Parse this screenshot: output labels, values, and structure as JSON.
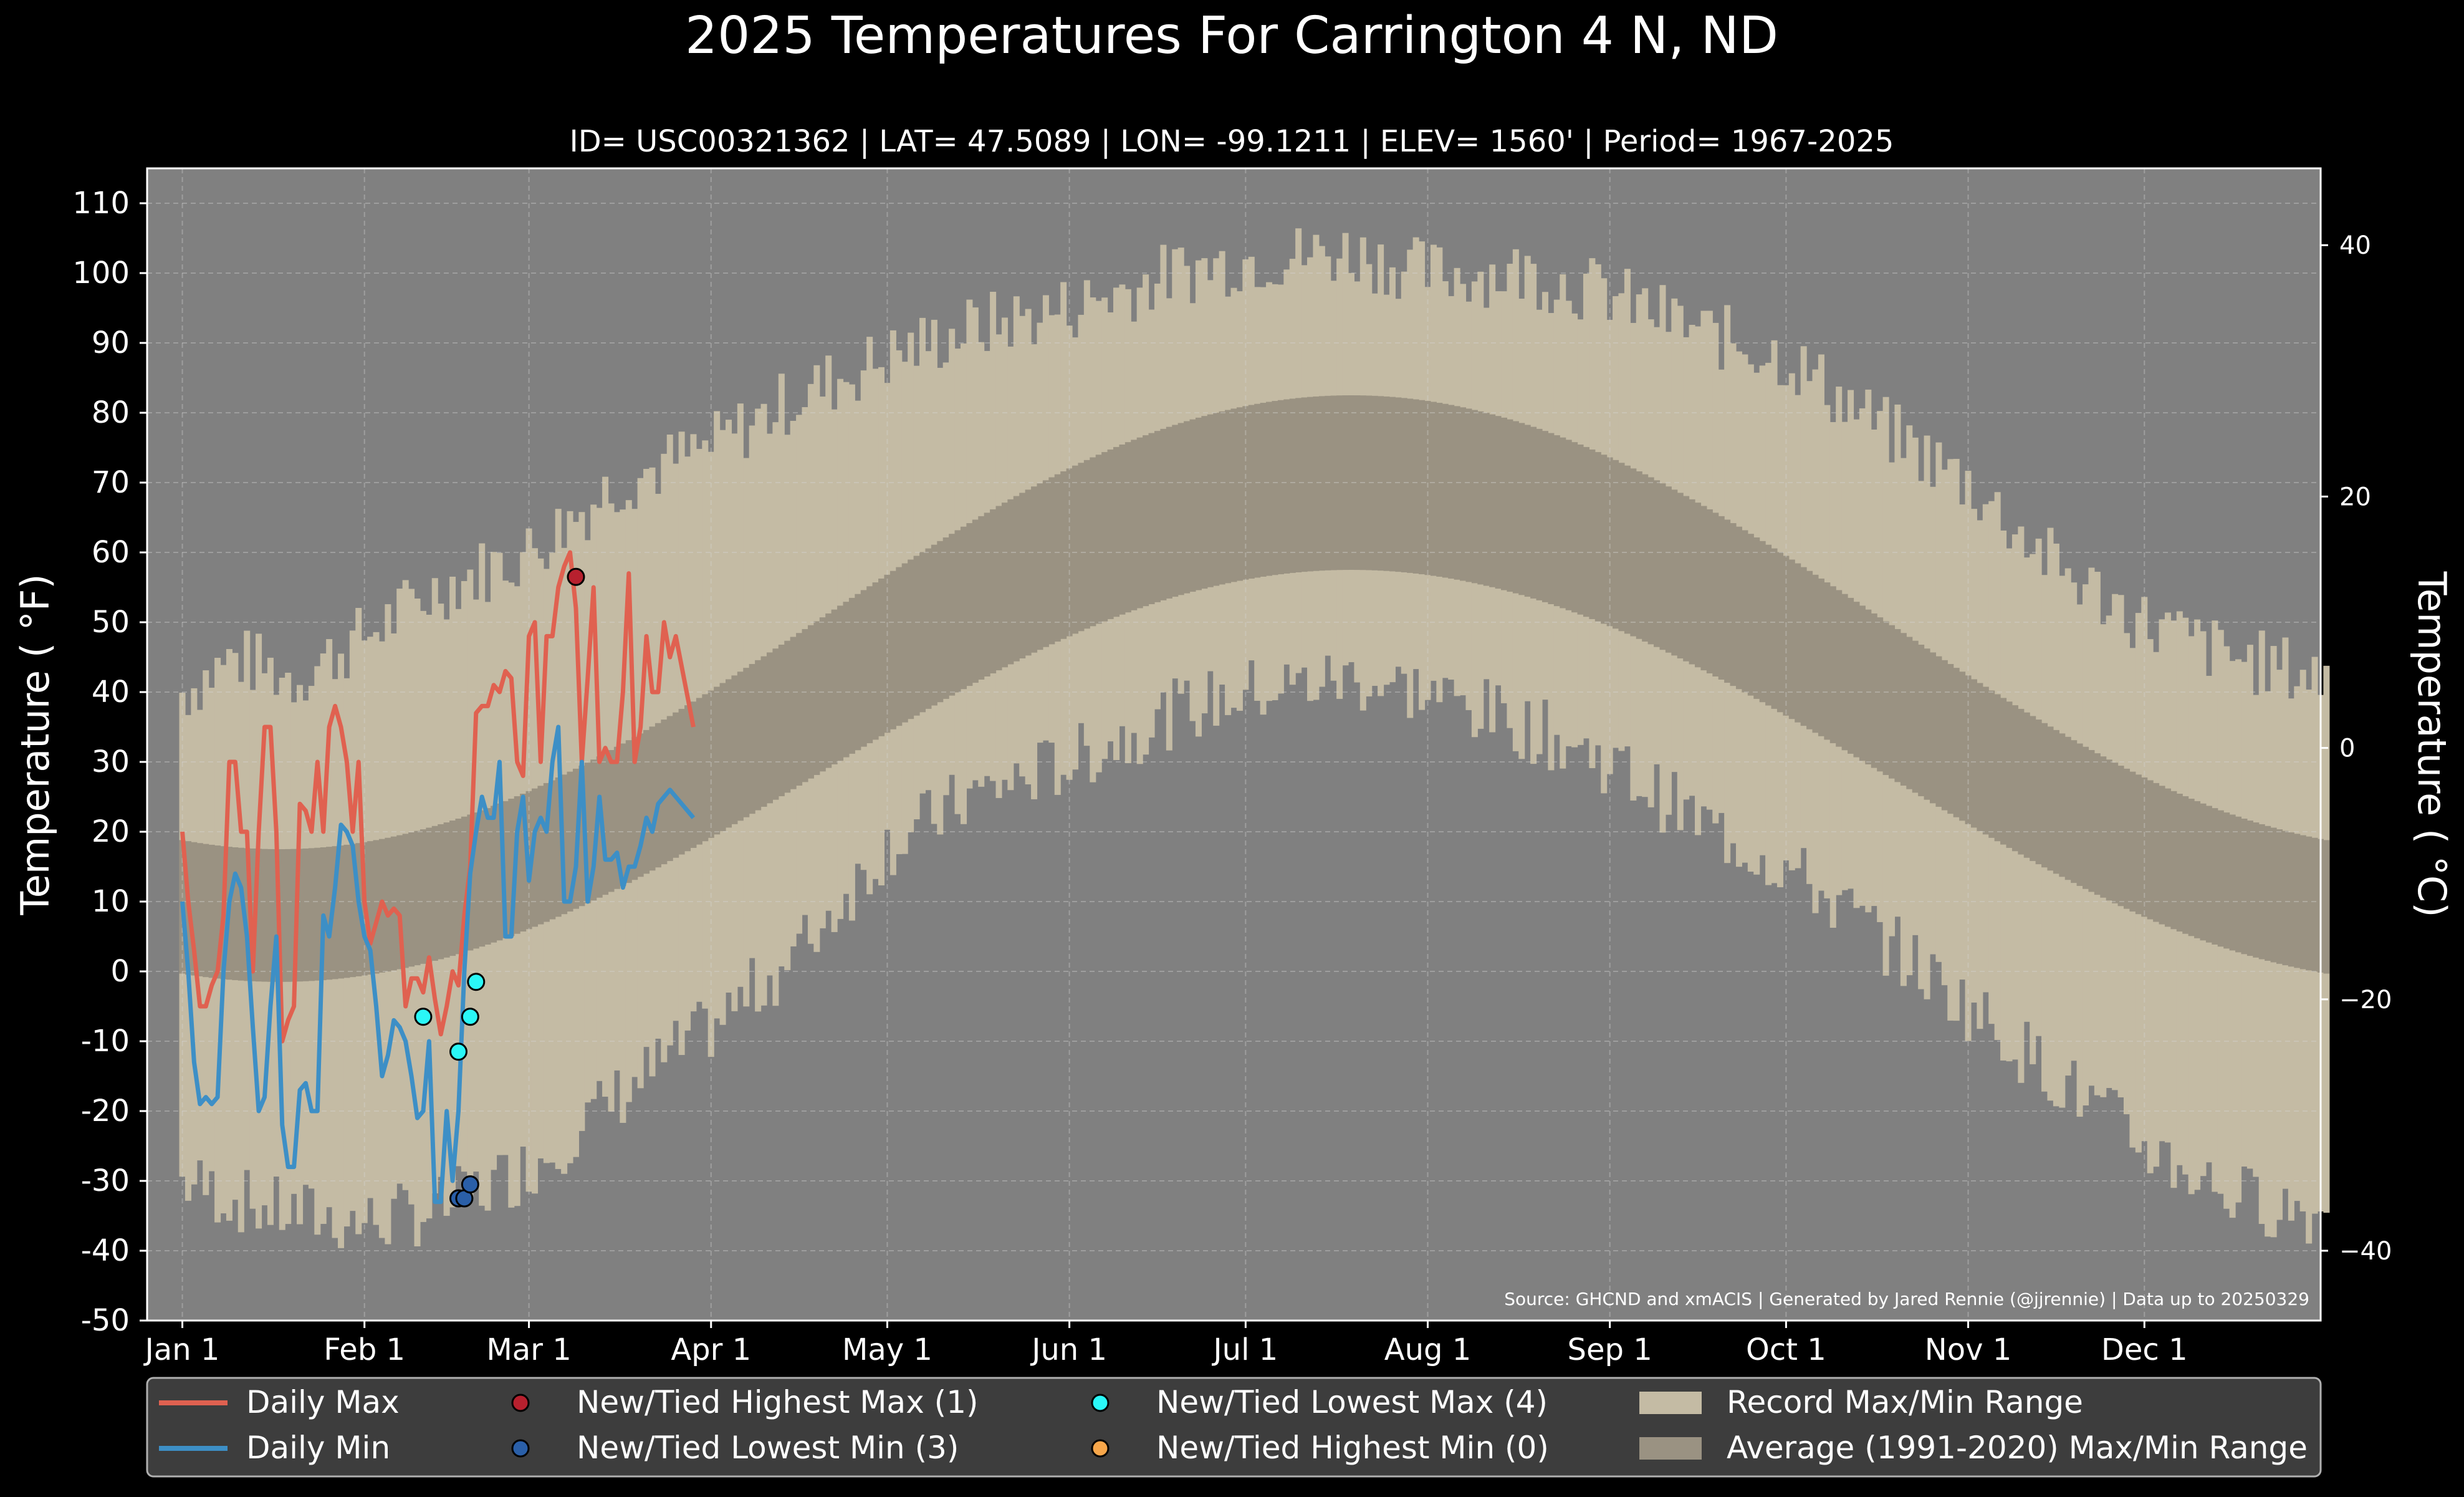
{
  "chart_data": {
    "type": "line",
    "title": "2025 Temperatures For Carrington 4 N, ND",
    "subtitle": "ID= USC00321362 | LAT= 47.5089 | LON= -99.1211 | ELEV= 1560' | Period= 1967-2025",
    "ylabel": "Temperature ( °F)",
    "ylabel_right": "Temperature ( °C)",
    "source": "Source: GHCND and xmACIS | Generated by Jared Rennie (@jjrennie) | Data up to 20250329",
    "ylim": [
      -50,
      115
    ],
    "xlim_day": [
      -5,
      365
    ],
    "grid": true,
    "y_ticks": [
      110,
      100,
      90,
      80,
      70,
      60,
      50,
      40,
      30,
      20,
      10,
      0,
      -10,
      -20,
      -30,
      -40,
      -50
    ],
    "y_ticks_c": [
      40,
      20,
      0,
      -20,
      -40
    ],
    "x_ticks": [
      {
        "label": "Jan 1",
        "day": 1
      },
      {
        "label": "Feb 1",
        "day": 32
      },
      {
        "label": "Mar 1",
        "day": 60
      },
      {
        "label": "Apr 1",
        "day": 91
      },
      {
        "label": "May 1",
        "day": 121
      },
      {
        "label": "Jun 1",
        "day": 152
      },
      {
        "label": "Jul 1",
        "day": 182
      },
      {
        "label": "Aug 1",
        "day": 213
      },
      {
        "label": "Sep 1",
        "day": 244
      },
      {
        "label": "Oct 1",
        "day": 274
      },
      {
        "label": "Nov 1",
        "day": 305
      },
      {
        "label": "Dec 1",
        "day": 335
      }
    ],
    "record_max_knots": [
      [
        1,
        40
      ],
      [
        10,
        45
      ],
      [
        20,
        42
      ],
      [
        32,
        48
      ],
      [
        45,
        55
      ],
      [
        60,
        60
      ],
      [
        75,
        70
      ],
      [
        91,
        75
      ],
      [
        105,
        82
      ],
      [
        121,
        88
      ],
      [
        135,
        92
      ],
      [
        152,
        95
      ],
      [
        170,
        100
      ],
      [
        182,
        102
      ],
      [
        200,
        103
      ],
      [
        213,
        100
      ],
      [
        230,
        100
      ],
      [
        244,
        97
      ],
      [
        258,
        92
      ],
      [
        274,
        88
      ],
      [
        290,
        78
      ],
      [
        305,
        70
      ],
      [
        320,
        58
      ],
      [
        335,
        50
      ],
      [
        350,
        45
      ],
      [
        366,
        42
      ]
    ],
    "record_min_knots": [
      [
        1,
        -30
      ],
      [
        15,
        -34
      ],
      [
        32,
        -36
      ],
      [
        45,
        -34
      ],
      [
        60,
        -28
      ],
      [
        75,
        -18
      ],
      [
        91,
        -8
      ],
      [
        105,
        2
      ],
      [
        121,
        18
      ],
      [
        135,
        25
      ],
      [
        152,
        30
      ],
      [
        170,
        37
      ],
      [
        182,
        40
      ],
      [
        200,
        42
      ],
      [
        213,
        40
      ],
      [
        230,
        35
      ],
      [
        244,
        30
      ],
      [
        258,
        22
      ],
      [
        274,
        15
      ],
      [
        290,
        5
      ],
      [
        305,
        -5
      ],
      [
        320,
        -15
      ],
      [
        335,
        -25
      ],
      [
        350,
        -32
      ],
      [
        366,
        -35
      ]
    ],
    "series": [
      {
        "name": "Daily Max",
        "color": "#e06150",
        "values": [
          20,
          10,
          3,
          -5,
          -5,
          -2,
          0,
          8,
          30,
          30,
          20,
          20,
          0,
          20,
          35,
          35,
          20,
          -10,
          -7,
          -5,
          24,
          23,
          20,
          30,
          20,
          35,
          38,
          35,
          30,
          20,
          30,
          10,
          4,
          7,
          10,
          8,
          9,
          8,
          -5,
          -1,
          -1,
          -3,
          2,
          -4,
          -9,
          -5,
          0,
          -2,
          8,
          15,
          37,
          38,
          38,
          41,
          40,
          43,
          42,
          30,
          28,
          48,
          50,
          30,
          48,
          48,
          55,
          58,
          60,
          52,
          30,
          42,
          55,
          30,
          32,
          30,
          30,
          40,
          57,
          30,
          35,
          48,
          40,
          40,
          50,
          45,
          48,
          35
        ],
        "days": [
          1,
          2,
          3,
          4,
          5,
          6,
          7,
          8,
          9,
          10,
          11,
          12,
          13,
          14,
          15,
          16,
          17,
          18,
          19,
          20,
          21,
          22,
          23,
          24,
          25,
          26,
          27,
          28,
          29,
          30,
          31,
          32,
          33,
          34,
          35,
          36,
          37,
          38,
          39,
          40,
          41,
          42,
          43,
          44,
          45,
          46,
          47,
          48,
          49,
          50,
          51,
          52,
          53,
          54,
          55,
          56,
          57,
          58,
          59,
          60,
          61,
          62,
          63,
          64,
          65,
          66,
          67,
          68,
          69,
          70,
          71,
          72,
          73,
          74,
          75,
          76,
          77,
          78,
          79,
          80,
          81,
          82,
          83,
          84,
          85,
          88
        ]
      },
      {
        "name": "Daily Min",
        "color": "#3d8fc6",
        "values": [
          10,
          0,
          -13,
          -19,
          -18,
          -19,
          -18,
          0,
          10,
          14,
          12,
          5,
          -8,
          -20,
          -18,
          -5,
          5,
          -22,
          -28,
          -28,
          -17,
          -16,
          -20,
          -20,
          8,
          5,
          12,
          21,
          20,
          18,
          10,
          5,
          3,
          -5,
          -15,
          -12,
          -7,
          -8,
          -10,
          -15,
          -21,
          -20,
          -10,
          -33,
          -33,
          -20,
          -30,
          -20,
          0,
          14,
          20,
          25,
          22,
          22,
          30,
          5,
          5,
          20,
          25,
          13,
          20,
          22,
          20,
          30,
          35,
          10,
          10,
          15,
          30,
          10,
          15,
          25,
          16,
          16,
          17,
          12,
          15,
          15,
          18,
          22,
          20,
          24,
          25,
          26,
          25,
          22
        ],
        "days": [
          1,
          2,
          3,
          4,
          5,
          6,
          7,
          8,
          9,
          10,
          11,
          12,
          13,
          14,
          15,
          16,
          17,
          18,
          19,
          20,
          21,
          22,
          23,
          24,
          25,
          26,
          27,
          28,
          29,
          30,
          31,
          32,
          33,
          34,
          35,
          36,
          37,
          38,
          39,
          40,
          41,
          42,
          43,
          44,
          45,
          46,
          47,
          48,
          49,
          50,
          51,
          52,
          53,
          54,
          55,
          56,
          57,
          58,
          59,
          60,
          61,
          62,
          63,
          64,
          65,
          66,
          67,
          68,
          69,
          70,
          71,
          72,
          73,
          74,
          75,
          76,
          77,
          78,
          79,
          80,
          81,
          82,
          83,
          84,
          85,
          88
        ]
      }
    ],
    "record_markers": [
      {
        "name": "New/Tied Highest Max (1)",
        "color": "#b7202e",
        "points": [
          [
            68,
            56.5
          ]
        ]
      },
      {
        "name": "New/Tied Lowest Min (3)",
        "color": "#2a5fa8",
        "points": [
          [
            48,
            -32.5
          ],
          [
            49,
            -32.5
          ],
          [
            50,
            -30.5
          ]
        ]
      },
      {
        "name": "New/Tied Lowest Max (4)",
        "color": "#2af7f7",
        "points": [
          [
            42,
            -6.5
          ],
          [
            48,
            -11.5
          ],
          [
            50,
            -6.5
          ],
          [
            51,
            -1.5
          ]
        ]
      },
      {
        "name": "New/Tied Highest Min (0)",
        "color": "#f7a64a",
        "points": []
      }
    ],
    "ranges": [
      {
        "name": "Record Max/Min Range",
        "color": "#c4bba4"
      },
      {
        "name": "Average (1991-2020) Max/Min Range",
        "color": "#9a9282"
      }
    ],
    "avg_range": {
      "max_mean": 50,
      "max_amp": 32.5,
      "min_mean": 28,
      "min_amp": 29.5,
      "peak_day": 200
    },
    "legend_position": "bottom",
    "colors": {
      "background": "#000000",
      "plot_bg": "#808080",
      "legend_bg": "#3d3d3d"
    }
  }
}
